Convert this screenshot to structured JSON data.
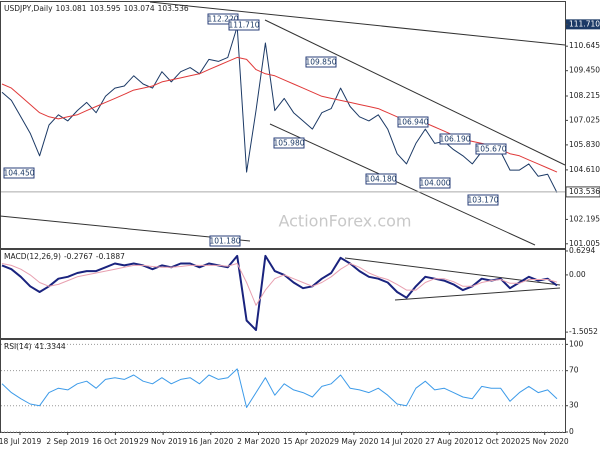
{
  "chart_data": [
    {
      "type": "line",
      "title": "USDJPY,Daily",
      "ohlc": [
        103.081,
        103.595,
        103.074,
        103.536
      ],
      "ylim": [
        100.8,
        112.8
      ],
      "yticks": [
        {
          "value": 111.71,
          "label": "111.710"
        },
        110.645,
        {
          "value": 109.45,
          "label": "109.450"
        },
        108.215,
        107.025,
        {
          "value": 105.83,
          "label": "105.830"
        },
        {
          "value": 104.61,
          "label": "104.610"
        },
        102.195,
        101.005
      ],
      "series": [
        {
          "color": "#1c3a66",
          "values": [
            108.4,
            108.0,
            107.2,
            106.4,
            105.3,
            106.8,
            107.3,
            107.0,
            107.5,
            107.9,
            107.4,
            108.2,
            108.6,
            108.7,
            109.2,
            108.8,
            108.6,
            109.4,
            108.9,
            109.4,
            109.6,
            109.3,
            110.0,
            109.9,
            110.1,
            111.6,
            104.5,
            107.5,
            110.8,
            107.5,
            108.1,
            107.4,
            107.0,
            106.6,
            107.4,
            107.6,
            108.6,
            107.7,
            107.2,
            107.0,
            107.3,
            106.6,
            105.4,
            104.9,
            105.9,
            106.6,
            105.9,
            106.0,
            105.6,
            105.3,
            104.9,
            105.5,
            105.4,
            105.5,
            104.6,
            104.6,
            104.9,
            104.3,
            104.4,
            103.5
          ]
        },
        {
          "color": "#e03a3a",
          "values": [
            108.8,
            108.6,
            108.2,
            107.8,
            107.4,
            107.2,
            107.1,
            107.2,
            107.3,
            107.5,
            107.7,
            107.9,
            108.1,
            108.3,
            108.5,
            108.6,
            108.7,
            108.9,
            109.0,
            109.1,
            109.2,
            109.3,
            109.5,
            109.7,
            109.9,
            110.1,
            110.0,
            109.5,
            109.3,
            109.2,
            109.0,
            108.8,
            108.6,
            108.4,
            108.2,
            108.1,
            108.0,
            107.9,
            107.8,
            107.7,
            107.6,
            107.4,
            107.2,
            107.0,
            106.9,
            106.9,
            106.7,
            106.5,
            106.3,
            106.1,
            106.0,
            105.9,
            105.8,
            105.6,
            105.4,
            105.3,
            105.1,
            104.9,
            104.7,
            104.5
          ]
        }
      ],
      "annotations": [
        "112.220",
        "111.710",
        "109.850",
        "105.980",
        "104.450",
        "104.180",
        "104.000",
        "106.940",
        "106.190",
        "105.670",
        "103.170",
        "101.180"
      ],
      "watermark": "ActionForex.com"
    },
    {
      "type": "line",
      "title": "MACD(12,26,9)",
      "readings": [
        -0.2767,
        -0.1887
      ],
      "ylim": [
        -1.66,
        0.655
      ],
      "yticks": [
        0.6294,
        {
          "value": 0,
          "label": "0.00"
        },
        -1.5052
      ],
      "series": [
        {
          "color": "#1a237e",
          "values": [
            0.25,
            0.15,
            -0.05,
            -0.3,
            -0.45,
            -0.3,
            -0.1,
            -0.05,
            0.05,
            0.1,
            0.1,
            0.2,
            0.3,
            0.25,
            0.3,
            0.25,
            0.15,
            0.25,
            0.2,
            0.3,
            0.3,
            0.2,
            0.3,
            0.25,
            0.2,
            0.5,
            -1.2,
            -1.45,
            0.5,
            0.1,
            0.0,
            -0.2,
            -0.35,
            -0.3,
            -0.1,
            0.05,
            0.45,
            0.3,
            0.1,
            -0.05,
            -0.1,
            -0.2,
            -0.45,
            -0.6,
            -0.3,
            -0.05,
            -0.1,
            -0.15,
            -0.25,
            -0.4,
            -0.3,
            -0.1,
            -0.15,
            -0.1,
            -0.35,
            -0.2,
            -0.05,
            -0.15,
            -0.1,
            -0.28
          ]
        },
        {
          "color": "#e8a0b0",
          "values": [
            0.3,
            0.25,
            0.15,
            0.0,
            -0.2,
            -0.3,
            -0.25,
            -0.15,
            -0.05,
            0.0,
            0.05,
            0.1,
            0.15,
            0.2,
            0.25,
            0.25,
            0.22,
            0.2,
            0.2,
            0.22,
            0.25,
            0.25,
            0.25,
            0.25,
            0.23,
            0.3,
            -0.2,
            -0.8,
            -0.4,
            -0.1,
            0.0,
            -0.1,
            -0.2,
            -0.3,
            -0.2,
            -0.05,
            0.15,
            0.3,
            0.2,
            0.05,
            -0.05,
            -0.12,
            -0.25,
            -0.4,
            -0.4,
            -0.2,
            -0.1,
            -0.1,
            -0.18,
            -0.3,
            -0.3,
            -0.2,
            -0.15,
            -0.12,
            -0.22,
            -0.22,
            -0.12,
            -0.12,
            -0.12,
            -0.19
          ]
        }
      ]
    },
    {
      "type": "line",
      "title": "RSI(14)",
      "readings": [
        41.3344
      ],
      "ylim": [
        0,
        105
      ],
      "yticks": [
        100,
        70,
        30,
        0
      ],
      "grid": true,
      "series": [
        {
          "color": "#3d9be9",
          "values": [
            55,
            45,
            38,
            32,
            30,
            45,
            50,
            48,
            55,
            58,
            50,
            60,
            62,
            60,
            65,
            58,
            55,
            62,
            55,
            60,
            62,
            55,
            65,
            60,
            62,
            72,
            28,
            45,
            62,
            42,
            55,
            48,
            45,
            40,
            52,
            55,
            65,
            50,
            48,
            45,
            50,
            42,
            32,
            30,
            50,
            58,
            48,
            50,
            45,
            40,
            38,
            52,
            50,
            50,
            35,
            45,
            52,
            45,
            48,
            38
          ]
        }
      ],
      "xtick_labels": [
        "18 Jul 2019",
        "2 Sep 2019",
        "16 Oct 2019",
        "29 Nov 2019",
        "16 Jan 2020",
        "2 Mar 2020",
        "15 Apr 2020",
        "29 May 2020",
        "14 Jul 2020",
        "27 Aug 2020",
        "12 Oct 2020",
        "25 Nov 2020"
      ]
    }
  ]
}
